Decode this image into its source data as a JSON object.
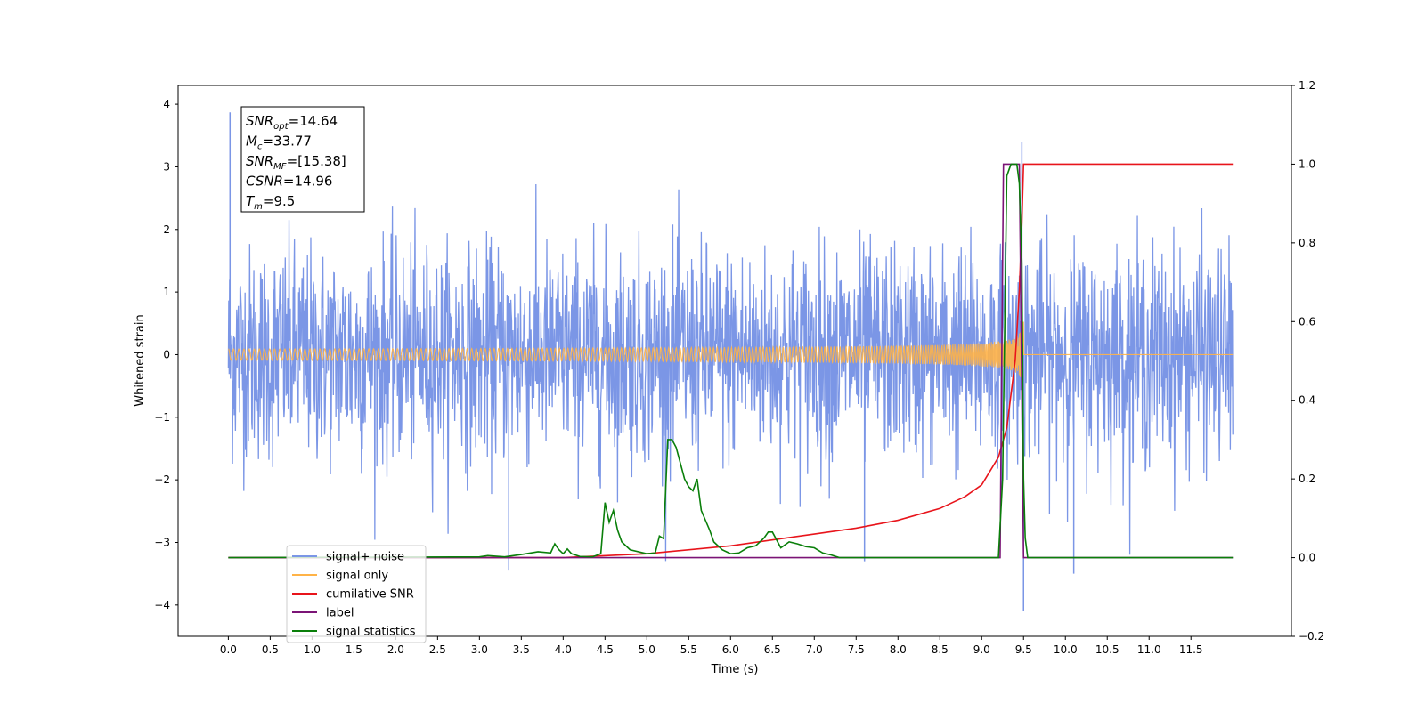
{
  "chart_data": {
    "type": "line",
    "title": "",
    "xlabel": "Time (s)",
    "ylabel": "Whitened strain",
    "xlim": [
      -0.6,
      12.7
    ],
    "ylim": [
      -4.5,
      4.3
    ],
    "y2lim": [
      -0.2,
      1.2
    ],
    "x_ticks": [
      "0.0",
      "0.5",
      "1.0",
      "1.5",
      "2.0",
      "2.5",
      "3.0",
      "3.5",
      "4.0",
      "4.5",
      "5.0",
      "5.5",
      "6.0",
      "6.5",
      "7.0",
      "7.5",
      "8.0",
      "8.5",
      "9.0",
      "9.5",
      "10.0",
      "10.5",
      "11.0",
      "11.5"
    ],
    "y_ticks": [
      "4",
      "3",
      "2",
      "1",
      "0",
      "−1",
      "−2",
      "−3",
      "−4"
    ],
    "y2_ticks": [
      "1.2",
      "1.0",
      "0.8",
      "0.6",
      "0.4",
      "0.2",
      "0.0",
      "−0.2"
    ],
    "grid": false,
    "legend_position": "lower-left",
    "annotation": {
      "lines": [
        {
          "base": "SNR",
          "sub": "opt",
          "value": "=14.64"
        },
        {
          "base": "M",
          "sub": "c",
          "value": "=33.77"
        },
        {
          "base": "SNR",
          "sub": "MF",
          "value": "=[15.38]"
        },
        {
          "base": "CSNR",
          "sub": "",
          "value": "=14.96"
        },
        {
          "base": "T",
          "sub": "m",
          "value": "=9.5"
        }
      ]
    },
    "series": [
      {
        "name": "signal+ noise",
        "axis": "left",
        "color": "#7b96e6",
        "kind": "noise",
        "duration": [
          0.0,
          12.0
        ],
        "baseline_sigma": 0.85,
        "peaks": [
          [
            0.02,
            3.87
          ],
          [
            9.48,
            3.4
          ],
          [
            9.5,
            -4.1
          ],
          [
            7.6,
            -3.3
          ],
          [
            10.1,
            -3.5
          ],
          [
            3.35,
            -3.45
          ]
        ]
      },
      {
        "name": "signal only",
        "axis": "left",
        "color": "#ffb347",
        "kind": "chirp",
        "start": 0.0,
        "merger": 9.5,
        "end": 12.0,
        "peak_amplitude": 1.2
      },
      {
        "name": "cumilative SNR",
        "axis": "right",
        "color": "#e8141b",
        "x": [
          0.0,
          4.0,
          5.0,
          6.0,
          7.0,
          7.5,
          8.0,
          8.5,
          8.8,
          9.0,
          9.2,
          9.3,
          9.4,
          9.45,
          9.48,
          9.5,
          12.0
        ],
        "values": [
          0.0,
          0.0,
          0.01,
          0.03,
          0.06,
          0.075,
          0.095,
          0.125,
          0.155,
          0.185,
          0.255,
          0.33,
          0.5,
          0.68,
          0.85,
          1.0,
          1.0
        ]
      },
      {
        "name": "label",
        "axis": "right",
        "color": "#7b1476",
        "x": [
          0.0,
          9.22,
          9.26,
          9.45,
          9.5,
          12.0
        ],
        "values": [
          0.0,
          0.0,
          1.0,
          1.0,
          0.0,
          0.0
        ]
      },
      {
        "name": "signal statistics",
        "axis": "right",
        "color": "#0a7f0a",
        "x": [
          0.0,
          3.0,
          3.1,
          3.3,
          3.5,
          3.7,
          3.85,
          3.9,
          3.95,
          4.0,
          4.05,
          4.1,
          4.2,
          4.35,
          4.45,
          4.5,
          4.55,
          4.6,
          4.65,
          4.7,
          4.8,
          5.0,
          5.1,
          5.15,
          5.2,
          5.25,
          5.3,
          5.35,
          5.45,
          5.5,
          5.55,
          5.6,
          5.65,
          5.75,
          5.8,
          5.9,
          6.0,
          6.1,
          6.2,
          6.3,
          6.4,
          6.45,
          6.5,
          6.6,
          6.7,
          6.8,
          6.9,
          7.0,
          7.1,
          7.2,
          7.3,
          9.2,
          9.25,
          9.3,
          9.35,
          9.38,
          9.42,
          9.45,
          9.48,
          9.5,
          9.52,
          9.55,
          12.0
        ],
        "values": [
          0.0,
          0.002,
          0.005,
          0.002,
          0.008,
          0.015,
          0.012,
          0.035,
          0.02,
          0.01,
          0.022,
          0.01,
          0.003,
          0.002,
          0.01,
          0.14,
          0.09,
          0.12,
          0.07,
          0.04,
          0.02,
          0.01,
          0.012,
          0.055,
          0.048,
          0.3,
          0.3,
          0.28,
          0.2,
          0.18,
          0.17,
          0.2,
          0.12,
          0.07,
          0.04,
          0.02,
          0.01,
          0.012,
          0.025,
          0.03,
          0.05,
          0.065,
          0.065,
          0.025,
          0.04,
          0.035,
          0.028,
          0.025,
          0.012,
          0.007,
          0.0,
          0.0,
          0.2,
          0.97,
          1.0,
          1.0,
          1.0,
          0.95,
          0.75,
          0.2,
          0.05,
          0.0,
          0.0
        ]
      }
    ]
  }
}
